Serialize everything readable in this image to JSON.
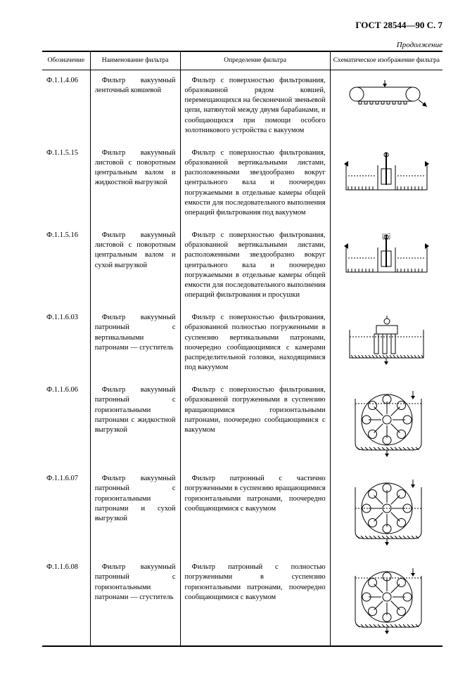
{
  "header": "ГОСТ 28544—90 С. 7",
  "continuation": "Продолжение",
  "columns": {
    "c1": "Обозначение",
    "c2": "Наименование фильтра",
    "c3": "Определение фильтра",
    "c4": "Схематическое изображение фильтра"
  },
  "rows": [
    {
      "code": "Ф.1.1.4.06",
      "name": "Фильтр вакуумный ленточный ковшевой",
      "def": "Фильтр с поверхностью фильтрования, образованной рядом ковшей, перемещающихся на бесконечной звеньевой цепи, натянутой между двумя барабанами, и сообщающихся при помощи особого золотникового устройства с вакуумом",
      "diagram": "belt"
    },
    {
      "code": "Ф.1.1.5.15",
      "name": "Фильтр вакуумный листовой с поворотным центральным валом и жидкостной выгрузкой",
      "def": "Фильтр с поверхностью фильтрования, образованной вертикальными листами, расположенными звездообразно вокруг центрального вала и поочередно погружаемыми в отдельные камеры общей емкости для последовательного выполнения операций фильтрования под вакуумом",
      "diagram": "leaf-wet"
    },
    {
      "code": "Ф.1.1.5.16",
      "name": "Фильтр вакуумный листовой с поворотным центральным валом и сухой выгрузкой",
      "def": "Фильтр с поверхностью фильтрования, образованной вертикальными листами, расположенными звездообразно вокруг центрального вала и поочередно погружаемыми в отдельные камеры общей емкости для последовательного выполнения операций фильтрования и просушки",
      "diagram": "leaf-dry"
    },
    {
      "code": "Ф.1.1.6.03",
      "name": "Фильтр вакуумный патронный с вертикальными патронами — сгуститель",
      "def": "Фильтр с поверхностью фильтрования, образованной полностью погруженными в суспензию вертикальными патронами, поочередно сообщающимися с камерами распределительной головки, находящимися под вакуумом",
      "diagram": "cartridge-vert"
    },
    {
      "code": "Ф.1.1.6.06",
      "name": "Фильтр вакуумный патронный с горизонтальными патронами с жидкостной выгрузкой",
      "def": "Фильтр с поверхностью фильтрования, образованной погруженными в суспензию вращающимися горизонтальными патронами, поочередно сообщающимися с вакуумом",
      "diagram": "cartridge-radial-wet"
    },
    {
      "code": "Ф.1.1.6.07",
      "name": "Фильтр вакуумный патронный с горизонтальными патронами и сухой выгрузкой",
      "def": "Фильтр патронный с частично погруженными в суспензию вращающимися горизонтальными патронами, поочередно сообщающимися с вакуумом",
      "diagram": "cartridge-radial-dry"
    },
    {
      "code": "Ф.1.1.6.08",
      "name": "Фильтр вакуумный патронный с горизонтальными патронами — сгуститель",
      "def": "Фильтр патронный с полностью погруженными в суспензию горизонтальными патронами, поочередно сообщающимися с вакуумом",
      "diagram": "cartridge-radial-full"
    }
  ],
  "style": {
    "stroke": "#000000",
    "fill": "#ffffff"
  }
}
